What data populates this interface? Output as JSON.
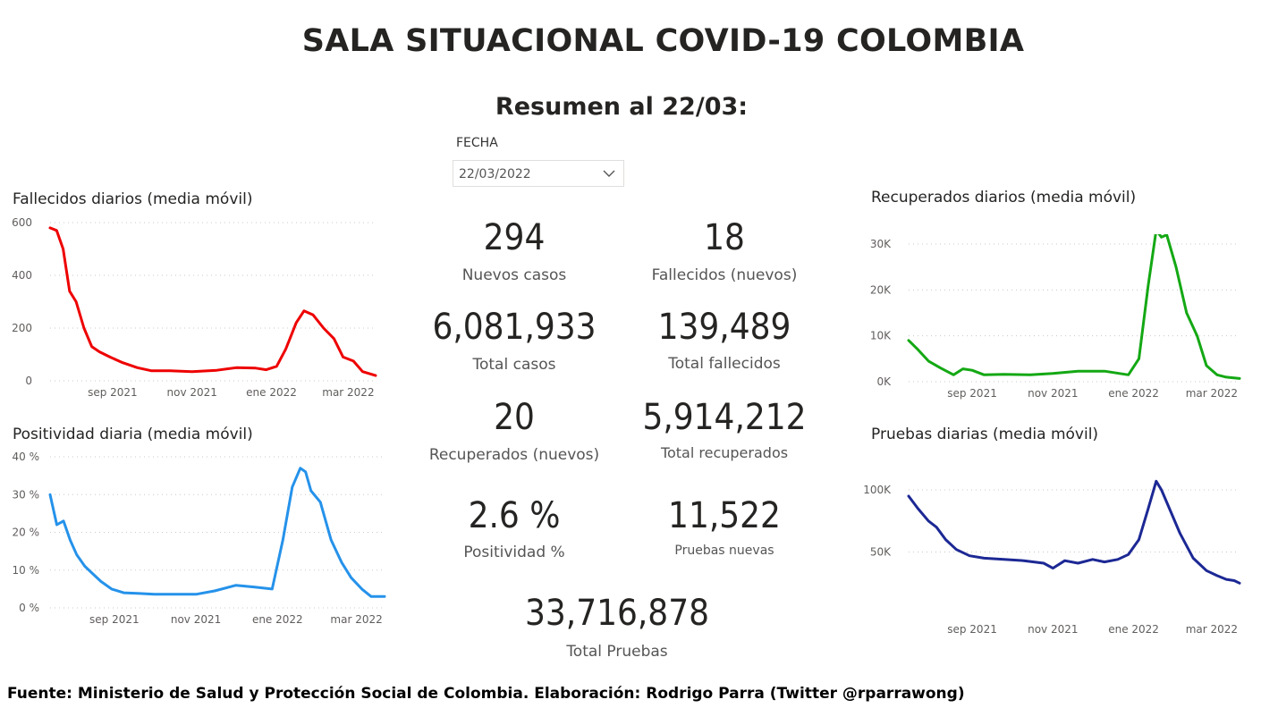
{
  "header": {
    "title": "SALA SITUACIONAL COVID-19 COLOMBIA",
    "subtitle": "Resumen al 22/03:"
  },
  "filter": {
    "label": "FECHA",
    "value": "22/03/2022",
    "icon": "chevron-down-icon"
  },
  "kpis": {
    "nuevos_casos": {
      "value": "294",
      "label": "Nuevos casos"
    },
    "fallecidos_nuevos": {
      "value": "18",
      "label": "Fallecidos (nuevos)"
    },
    "total_casos": {
      "value": "6,081,933",
      "label": "Total casos"
    },
    "total_fallecidos": {
      "value": "139,489",
      "label": "Total fallecidos"
    },
    "recuperados_nuevos": {
      "value": "20",
      "label": "Recuperados (nuevos)"
    },
    "total_recuperados": {
      "value": "5,914,212",
      "label": "Total recuperados"
    },
    "positividad": {
      "value": "2.6 %",
      "label": "Positividad %"
    },
    "pruebas_nuevas": {
      "value": "11,522",
      "label": "Pruebas nuevas"
    },
    "total_pruebas": {
      "value": "33,716,878",
      "label": "Total Pruebas"
    }
  },
  "footer": "Fuente: Ministerio de Salud y Protección Social de Colombia. Elaboración: Rodrigo Parra (Twitter @rparrawong)",
  "chart_data": [
    {
      "id": "fallecidos",
      "type": "line",
      "title": "Fallecidos diarios (media móvil)",
      "color": "#ee0000",
      "grid": true,
      "ylim": [
        0,
        600
      ],
      "yticks": [
        0,
        200,
        400,
        600
      ],
      "ytick_labels": [
        "0",
        "200",
        "400",
        "600"
      ],
      "xlim": [
        "2021-07-15",
        "2022-03-22"
      ],
      "xticks": [
        "2021-09-01",
        "2021-11-01",
        "2022-01-01",
        "2022-03-01"
      ],
      "xtick_labels": [
        "sep 2021",
        "nov 2021",
        "ene 2022",
        "mar 2022"
      ],
      "x": [
        "2021-07-15",
        "2021-07-20",
        "2021-07-25",
        "2021-07-30",
        "2021-08-04",
        "2021-08-10",
        "2021-08-16",
        "2021-08-22",
        "2021-08-30",
        "2021-09-08",
        "2021-09-20",
        "2021-10-01",
        "2021-10-15",
        "2021-11-01",
        "2021-11-20",
        "2021-12-05",
        "2021-12-20",
        "2021-12-28",
        "2022-01-05",
        "2022-01-12",
        "2022-01-20",
        "2022-01-26",
        "2022-02-02",
        "2022-02-10",
        "2022-02-18",
        "2022-02-25",
        "2022-03-05",
        "2022-03-12",
        "2022-03-22"
      ],
      "y": [
        580,
        570,
        500,
        340,
        300,
        200,
        130,
        110,
        90,
        70,
        50,
        38,
        38,
        35,
        40,
        50,
        48,
        42,
        55,
        120,
        220,
        265,
        250,
        200,
        160,
        90,
        75,
        35,
        20
      ]
    },
    {
      "id": "positividad",
      "type": "line",
      "title": "Positividad diaria (media móvil)",
      "color": "#2592ea",
      "grid": true,
      "ylim": [
        0,
        40
      ],
      "yticks": [
        0,
        10,
        20,
        30,
        40
      ],
      "ytick_labels": [
        "0 %",
        "10 %",
        "20 %",
        "30 %",
        "40 %"
      ],
      "xlim": [
        "2021-07-15",
        "2022-03-22"
      ],
      "xticks": [
        "2021-09-01",
        "2021-11-01",
        "2022-01-01",
        "2022-03-01"
      ],
      "xtick_labels": [
        "sep 2021",
        "nov 2021",
        "ene 2022",
        "mar 2022"
      ],
      "x": [
        "2021-07-15",
        "2021-07-20",
        "2021-07-25",
        "2021-07-30",
        "2021-08-04",
        "2021-08-10",
        "2021-08-16",
        "2021-08-22",
        "2021-08-30",
        "2021-09-08",
        "2021-09-20",
        "2021-10-01",
        "2021-10-15",
        "2021-11-01",
        "2021-11-15",
        "2021-12-01",
        "2021-12-15",
        "2021-12-28",
        "2022-01-05",
        "2022-01-12",
        "2022-01-18",
        "2022-01-22",
        "2022-01-26",
        "2022-02-02",
        "2022-02-10",
        "2022-02-18",
        "2022-02-25",
        "2022-03-05",
        "2022-03-12",
        "2022-03-22"
      ],
      "y": [
        30,
        22,
        23,
        18,
        14,
        11,
        9,
        7,
        5,
        4,
        3.8,
        3.6,
        3.6,
        3.6,
        4.5,
        6,
        5.5,
        5,
        18,
        32,
        37,
        36,
        31,
        28,
        18,
        12,
        8,
        5,
        3,
        3
      ]
    },
    {
      "id": "recuperados",
      "type": "line",
      "title": "Recuperados diarios (media móvil)",
      "color": "#14a814",
      "grid": true,
      "ylim": [
        0,
        30000
      ],
      "yticks": [
        0,
        10000,
        20000,
        30000
      ],
      "ytick_labels": [
        "0K",
        "10K",
        "20K",
        "30K"
      ],
      "xlim": [
        "2021-07-15",
        "2022-03-22"
      ],
      "xticks": [
        "2021-09-01",
        "2021-11-01",
        "2022-01-01",
        "2022-03-01"
      ],
      "xtick_labels": [
        "sep 2021",
        "nov 2021",
        "ene 2022",
        "mar 2022"
      ],
      "x": [
        "2021-07-15",
        "2021-07-22",
        "2021-07-30",
        "2021-08-08",
        "2021-08-18",
        "2021-08-25",
        "2021-09-01",
        "2021-09-10",
        "2021-09-25",
        "2021-10-15",
        "2021-11-01",
        "2021-11-20",
        "2021-12-10",
        "2021-12-28",
        "2022-01-05",
        "2022-01-12",
        "2022-01-18",
        "2022-01-22",
        "2022-01-26",
        "2022-02-02",
        "2022-02-10",
        "2022-02-18",
        "2022-02-25",
        "2022-03-05",
        "2022-03-12",
        "2022-03-22"
      ],
      "y": [
        9000,
        7000,
        4500,
        3000,
        1500,
        2800,
        2500,
        1500,
        1600,
        1500,
        1800,
        2300,
        2300,
        1500,
        5000,
        21000,
        33000,
        31500,
        32000,
        25000,
        15000,
        10000,
        3500,
        1500,
        1000,
        700
      ]
    },
    {
      "id": "pruebas",
      "type": "line",
      "title": "Pruebas diarias (media móvil)",
      "color": "#1c2894",
      "grid": true,
      "ylim": [
        0,
        100000
      ],
      "yticks": [
        50000,
        100000
      ],
      "ytick_labels": [
        "50K",
        "100K"
      ],
      "xlim": [
        "2021-07-15",
        "2022-03-22"
      ],
      "xticks": [
        "2021-09-01",
        "2021-11-01",
        "2022-01-01",
        "2022-03-01"
      ],
      "xtick_labels": [
        "sep 2021",
        "nov 2021",
        "ene 2022",
        "mar 2022"
      ],
      "x": [
        "2021-07-15",
        "2021-07-22",
        "2021-07-30",
        "2021-08-05",
        "2021-08-12",
        "2021-08-20",
        "2021-08-30",
        "2021-09-10",
        "2021-09-25",
        "2021-10-10",
        "2021-10-25",
        "2021-11-01",
        "2021-11-10",
        "2021-11-20",
        "2021-12-01",
        "2021-12-10",
        "2021-12-20",
        "2021-12-28",
        "2022-01-05",
        "2022-01-12",
        "2022-01-18",
        "2022-01-22",
        "2022-01-28",
        "2022-02-05",
        "2022-02-15",
        "2022-02-25",
        "2022-03-05",
        "2022-03-12",
        "2022-03-18",
        "2022-03-22"
      ],
      "y": [
        95000,
        85000,
        75000,
        70000,
        60000,
        52000,
        47000,
        45000,
        44000,
        43000,
        41000,
        37000,
        43000,
        41000,
        44000,
        42000,
        44000,
        48000,
        60000,
        85000,
        107000,
        100000,
        85000,
        65000,
        45000,
        35000,
        31000,
        28000,
        27000,
        25000
      ]
    }
  ]
}
